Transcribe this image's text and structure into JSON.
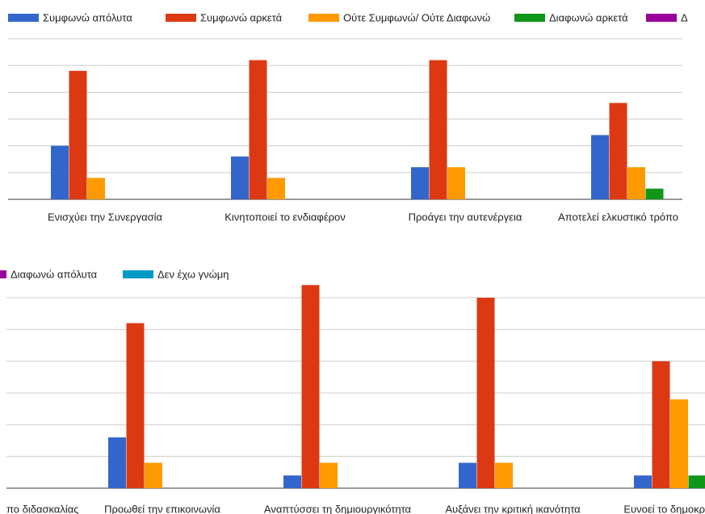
{
  "chart_data": [
    {
      "type": "bar",
      "categories": [
        "Ενισχύει την Συνεργασία",
        "Κινητοποιεί το ενδιαφέρον",
        "Προάγει την αυτενέργεια",
        "Αποτελεί ελκυστικό τρόπο"
      ],
      "series": [
        {
          "name": "Συμφωνώ απόλυτα",
          "color": "#3366cc",
          "values": [
            10,
            8,
            6,
            12
          ]
        },
        {
          "name": "Συμφωνώ αρκετά",
          "color": "#dc3912",
          "values": [
            24,
            26,
            26,
            18
          ]
        },
        {
          "name": "Ούτε Συμφωνώ/ Ούτε Διαφωνώ",
          "color": "#ff9900",
          "values": [
            4,
            4,
            6,
            6
          ]
        },
        {
          "name": "Διαφωνώ αρκετά",
          "color": "#109618",
          "values": [
            0,
            0,
            0,
            2
          ]
        },
        {
          "name": "Δ",
          "color": "#990099",
          "values": [
            0,
            0,
            0,
            0
          ]
        }
      ],
      "ylim": [
        0,
        30
      ],
      "yticks": [
        0,
        5,
        10,
        15,
        20,
        25,
        30
      ],
      "grid": true
    },
    {
      "type": "bar",
      "categories": [
        "πο διδασκαλίας",
        "Προωθεί την επικοινωνία",
        "Αναπτύσσει τη δημιουργικότητα",
        "Αυξάνει την κριτική ικανότητα",
        "Ευνοεί το δημοκρ"
      ],
      "series": [
        {
          "color": "#3366cc",
          "values": [
            null,
            8,
            2,
            4,
            2
          ]
        },
        {
          "color": "#dc3912",
          "values": [
            null,
            26,
            32,
            30,
            20
          ]
        },
        {
          "color": "#ff9900",
          "values": [
            null,
            4,
            4,
            4,
            14
          ]
        },
        {
          "color": "#109618",
          "values": [
            null,
            0,
            0,
            0,
            2
          ]
        },
        {
          "name": "Διαφωνώ απόλυτα",
          "color": "#990099",
          "values": [
            null,
            0,
            0,
            0,
            0
          ]
        },
        {
          "name": "Δεν έχω γνώμη",
          "color": "#0099c6",
          "values": [
            null,
            0,
            0,
            0,
            0
          ]
        }
      ],
      "ylim": [
        0,
        30
      ],
      "yticks": [
        0,
        5,
        10,
        15,
        20,
        25,
        30
      ],
      "grid": true
    }
  ]
}
